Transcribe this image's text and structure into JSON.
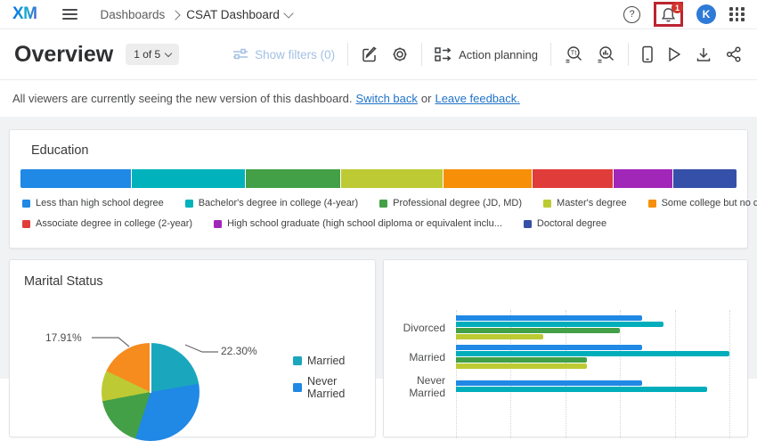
{
  "nav": {
    "logo": "XM",
    "breadcrumb": {
      "section": "Dashboards",
      "current": "CSAT Dashboard"
    },
    "notification_count": "1",
    "avatar_initial": "K"
  },
  "toolbar": {
    "title": "Overview",
    "page_indicator": "1 of 5",
    "show_filters_label": "Show filters (0)",
    "action_planning_label": "Action planning"
  },
  "notice": {
    "text": "All viewers are currently seeing the new version of this dashboard.",
    "link_switch_back": "Switch back",
    "conjunction": "or",
    "link_leave_feedback": "Leave feedback."
  },
  "education": {
    "title": "Education",
    "chart_data": {
      "type": "bar",
      "subtype": "horizontal-stacked-percent",
      "segments": [
        {
          "label": "Less than high school degree",
          "pct": 15.5,
          "color": "#2088e5"
        },
        {
          "label": "Bachelor's degree in college (4-year)",
          "pct": 16.0,
          "color": "#00b2bc"
        },
        {
          "label": "Professional degree (JD, MD)",
          "pct": 13.3,
          "color": "#43a047"
        },
        {
          "label": "Master's degree",
          "pct": 14.3,
          "color": "#bdca33"
        },
        {
          "label": "Some college but no degree",
          "pct": 12.4,
          "color": "#f78f08"
        },
        {
          "label": "Associate degree in college (2-year)",
          "pct": 11.3,
          "color": "#e03c3a"
        },
        {
          "label": "High school graduate (high school diploma or equivalent inclu...",
          "pct": 8.4,
          "color": "#a127b8"
        },
        {
          "label": "Doctoral degree",
          "pct": 8.8,
          "color": "#3550a8"
        }
      ],
      "legend_rows": [
        [
          0,
          1,
          2,
          3,
          4
        ],
        [
          5,
          6,
          7
        ]
      ]
    }
  },
  "marital_pie": {
    "title": "Marital Status",
    "chart_data": {
      "type": "pie",
      "slices": [
        {
          "label": "Married",
          "pct": 22.3,
          "display": "22.30%",
          "color": "#1aa7bd"
        },
        {
          "label": "",
          "pct": 17.91,
          "display": "17.91%",
          "color": "#f68b1e"
        }
      ],
      "legend": [
        {
          "label": "Married",
          "color": "#1aa7bd"
        },
        {
          "label": "Never Married",
          "color": "#2088e5"
        }
      ]
    }
  },
  "marital_bars": {
    "chart_data": {
      "type": "bar",
      "orientation": "horizontal",
      "grid": "dotted-vertical",
      "axis_pct": [
        0,
        20,
        40,
        60,
        80,
        100
      ],
      "groups": [
        {
          "label": "Divorced",
          "bars": [
            {
              "color": "#2088e5",
              "pct": 68
            },
            {
              "color": "#00aebb",
              "pct": 76
            },
            {
              "color": "#43a047",
              "pct": 60
            },
            {
              "color": "#bdca33",
              "pct": 32
            }
          ]
        },
        {
          "label": "Married",
          "bars": [
            {
              "color": "#2088e5",
              "pct": 68
            },
            {
              "color": "#00aebb",
              "pct": 100
            },
            {
              "color": "#43a047",
              "pct": 48
            },
            {
              "color": "#bdca33",
              "pct": 48
            }
          ]
        },
        {
          "label": "Never Married",
          "bars": [
            {
              "color": "#2088e5",
              "pct": 68
            },
            {
              "color": "#00aebb",
              "pct": 92
            }
          ]
        }
      ]
    }
  }
}
